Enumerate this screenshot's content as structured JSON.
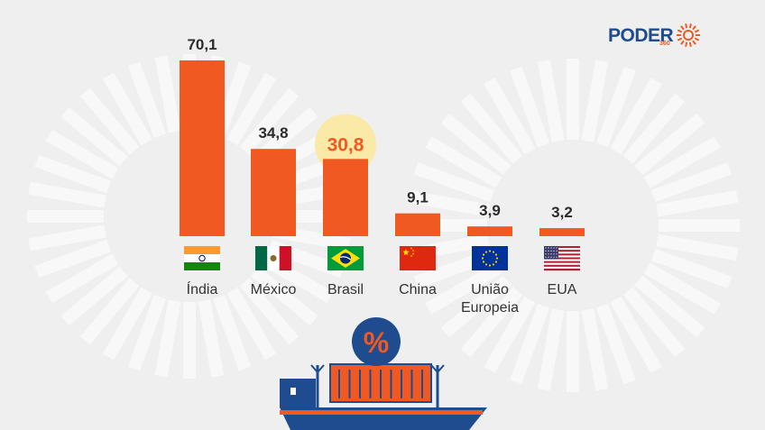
{
  "brand": {
    "name": "PODER",
    "suffix": "360",
    "colors": {
      "blue": "#1f4c8f",
      "orange": "#f05a22",
      "highlight": "#fbe9a8"
    }
  },
  "chart_data": {
    "type": "bar",
    "categories": [
      {
        "lines": [
          "Índia"
        ],
        "flag": "india-flag-icon"
      },
      {
        "lines": [
          "México"
        ],
        "flag": "mexico-flag-icon"
      },
      {
        "lines": [
          "Brasil"
        ],
        "flag": "brazil-flag-icon"
      },
      {
        "lines": [
          "China"
        ],
        "flag": "china-flag-icon"
      },
      {
        "lines": [
          "União",
          "Europeia"
        ],
        "flag": "eu-flag-icon"
      },
      {
        "lines": [
          "EUA"
        ],
        "flag": "usa-flag-icon"
      }
    ],
    "values": [
      70.1,
      34.8,
      30.8,
      9.1,
      3.9,
      3.2
    ],
    "value_labels": [
      "70,1",
      "34,8",
      "30,8",
      "9,1",
      "3,9",
      "3,2"
    ],
    "highlight_index": 2,
    "ylim": [
      0,
      70.1
    ],
    "grid": false,
    "legend": "none",
    "bar_color": "#f05a22"
  },
  "illustration": {
    "badge_symbol": "%",
    "icon": "cargo-ship-icon"
  }
}
